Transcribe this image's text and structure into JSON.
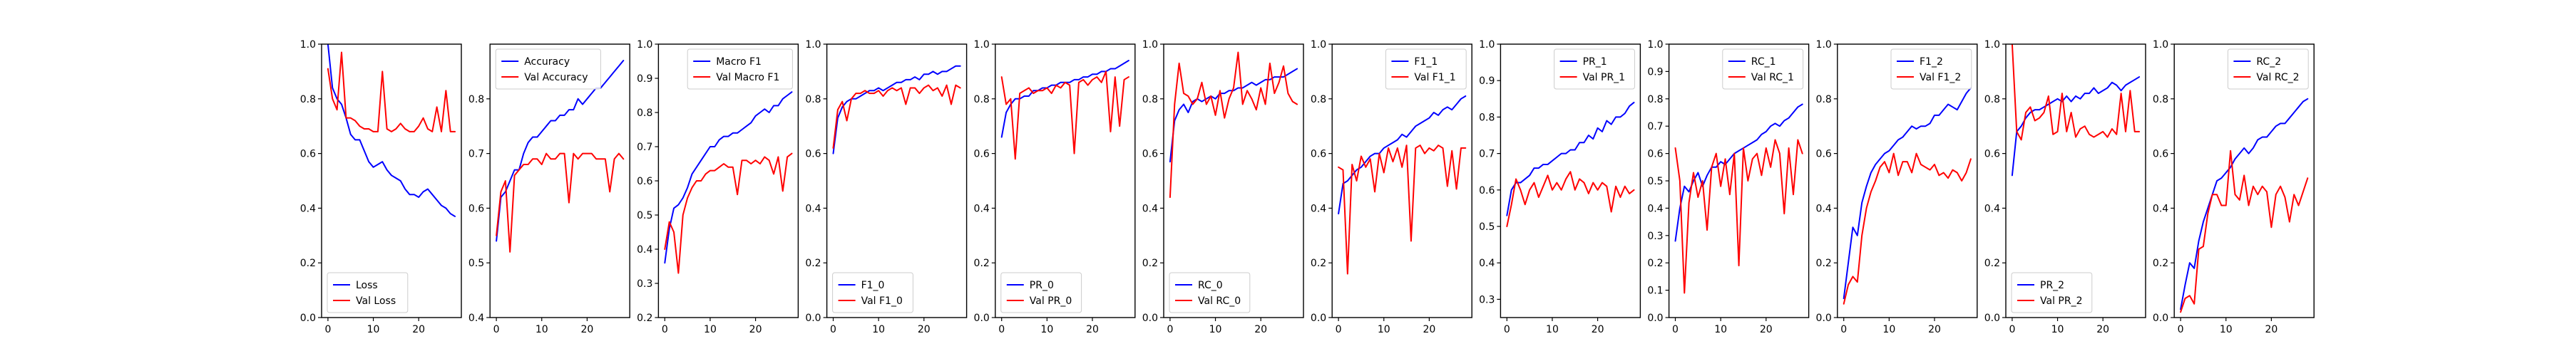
{
  "chart_data": [
    {
      "type": "line",
      "legend_loc": "bottom-left",
      "ylim": [
        0,
        1
      ],
      "xlim": [
        -1.4,
        29.4
      ],
      "xticks": [
        0,
        10,
        20
      ],
      "yticks": [
        0.0,
        0.2,
        0.4,
        0.6,
        0.8,
        1.0
      ],
      "series": [
        {
          "name": "Loss",
          "color": "#0000ff",
          "values": [
            1.0,
            0.84,
            0.8,
            0.78,
            0.73,
            0.67,
            0.65,
            0.65,
            0.61,
            0.57,
            0.55,
            0.56,
            0.57,
            0.54,
            0.52,
            0.51,
            0.5,
            0.47,
            0.45,
            0.45,
            0.44,
            0.46,
            0.47,
            0.45,
            0.43,
            0.41,
            0.4,
            0.38,
            0.37
          ]
        },
        {
          "name": "Val Loss",
          "color": "#ff0000",
          "values": [
            0.91,
            0.8,
            0.76,
            0.97,
            0.73,
            0.73,
            0.72,
            0.7,
            0.69,
            0.69,
            0.68,
            0.68,
            0.9,
            0.69,
            0.68,
            0.69,
            0.71,
            0.69,
            0.68,
            0.68,
            0.7,
            0.73,
            0.69,
            0.68,
            0.77,
            0.68,
            0.83,
            0.68,
            0.68
          ]
        }
      ]
    },
    {
      "type": "line",
      "legend_loc": "top-left",
      "ylim": [
        0.4,
        0.9
      ],
      "xlim": [
        -1.4,
        29.4
      ],
      "xticks": [
        0,
        10,
        20
      ],
      "yticks": [
        0.4,
        0.5,
        0.6,
        0.7,
        0.8
      ],
      "series": [
        {
          "name": "Accuracy",
          "color": "#0000ff",
          "values": [
            0.54,
            0.62,
            0.63,
            0.65,
            0.67,
            0.67,
            0.7,
            0.72,
            0.73,
            0.73,
            0.74,
            0.75,
            0.76,
            0.76,
            0.77,
            0.77,
            0.78,
            0.78,
            0.8,
            0.79,
            0.8,
            0.81,
            0.82,
            0.82,
            0.83,
            0.84,
            0.85,
            0.86,
            0.87
          ]
        },
        {
          "name": "Val Accuracy",
          "color": "#ff0000",
          "values": [
            0.55,
            0.63,
            0.65,
            0.52,
            0.66,
            0.67,
            0.68,
            0.68,
            0.69,
            0.69,
            0.68,
            0.7,
            0.69,
            0.69,
            0.7,
            0.7,
            0.61,
            0.7,
            0.69,
            0.7,
            0.7,
            0.7,
            0.69,
            0.69,
            0.69,
            0.63,
            0.69,
            0.7,
            0.69
          ]
        }
      ]
    },
    {
      "type": "line",
      "legend_loc": "top-right",
      "ylim": [
        0.2,
        1.0
      ],
      "xlim": [
        -1.4,
        29.4
      ],
      "xticks": [
        0,
        10,
        20
      ],
      "yticks": [
        0.2,
        0.3,
        0.4,
        0.5,
        0.6,
        0.7,
        0.8,
        0.9,
        1.0
      ],
      "series": [
        {
          "name": "Macro F1",
          "color": "#0000ff",
          "values": [
            0.36,
            0.46,
            0.52,
            0.53,
            0.55,
            0.58,
            0.62,
            0.64,
            0.66,
            0.68,
            0.7,
            0.7,
            0.72,
            0.73,
            0.73,
            0.74,
            0.74,
            0.75,
            0.76,
            0.77,
            0.79,
            0.8,
            0.81,
            0.8,
            0.82,
            0.82,
            0.84,
            0.85,
            0.86
          ]
        },
        {
          "name": "Val Macro F1",
          "color": "#ff0000",
          "values": [
            0.4,
            0.48,
            0.45,
            0.33,
            0.5,
            0.55,
            0.58,
            0.6,
            0.6,
            0.62,
            0.63,
            0.63,
            0.64,
            0.65,
            0.64,
            0.64,
            0.56,
            0.66,
            0.66,
            0.65,
            0.66,
            0.65,
            0.67,
            0.66,
            0.62,
            0.67,
            0.57,
            0.67,
            0.68
          ]
        }
      ]
    },
    {
      "type": "line",
      "legend_loc": "bottom-left",
      "ylim": [
        0,
        1
      ],
      "xlim": [
        -1.4,
        29.4
      ],
      "xticks": [
        0,
        10,
        20
      ],
      "yticks": [
        0.0,
        0.2,
        0.4,
        0.6,
        0.8,
        1.0
      ],
      "series": [
        {
          "name": "F1_0",
          "color": "#0000ff",
          "values": [
            0.6,
            0.73,
            0.77,
            0.79,
            0.8,
            0.8,
            0.81,
            0.82,
            0.83,
            0.83,
            0.84,
            0.83,
            0.84,
            0.85,
            0.86,
            0.86,
            0.87,
            0.87,
            0.88,
            0.87,
            0.89,
            0.89,
            0.9,
            0.89,
            0.9,
            0.9,
            0.91,
            0.92,
            0.92
          ]
        },
        {
          "name": "Val F1_0",
          "color": "#ff0000",
          "values": [
            0.62,
            0.76,
            0.79,
            0.72,
            0.8,
            0.82,
            0.82,
            0.83,
            0.82,
            0.82,
            0.83,
            0.81,
            0.83,
            0.84,
            0.83,
            0.84,
            0.78,
            0.84,
            0.84,
            0.82,
            0.84,
            0.85,
            0.83,
            0.84,
            0.81,
            0.85,
            0.78,
            0.85,
            0.84
          ]
        }
      ]
    },
    {
      "type": "line",
      "legend_loc": "bottom-left",
      "ylim": [
        0,
        1
      ],
      "xlim": [
        -1.4,
        29.4
      ],
      "xticks": [
        0,
        10,
        20
      ],
      "yticks": [
        0.0,
        0.2,
        0.4,
        0.6,
        0.8,
        1.0
      ],
      "series": [
        {
          "name": "PR_0",
          "color": "#0000ff",
          "values": [
            0.66,
            0.75,
            0.78,
            0.8,
            0.8,
            0.81,
            0.81,
            0.83,
            0.83,
            0.84,
            0.84,
            0.85,
            0.85,
            0.86,
            0.86,
            0.86,
            0.87,
            0.87,
            0.88,
            0.88,
            0.89,
            0.89,
            0.9,
            0.9,
            0.91,
            0.91,
            0.92,
            0.93,
            0.94
          ]
        },
        {
          "name": "Val PR_0",
          "color": "#ff0000",
          "values": [
            0.88,
            0.78,
            0.8,
            0.58,
            0.82,
            0.83,
            0.84,
            0.82,
            0.83,
            0.83,
            0.84,
            0.82,
            0.85,
            0.84,
            0.86,
            0.85,
            0.6,
            0.86,
            0.87,
            0.85,
            0.87,
            0.88,
            0.86,
            0.9,
            0.68,
            0.88,
            0.7,
            0.87,
            0.88
          ]
        }
      ]
    },
    {
      "type": "line",
      "legend_loc": "bottom-left",
      "ylim": [
        0,
        1
      ],
      "xlim": [
        -1.4,
        29.4
      ],
      "xticks": [
        0,
        10,
        20
      ],
      "yticks": [
        0.0,
        0.2,
        0.4,
        0.6,
        0.8,
        1.0
      ],
      "series": [
        {
          "name": "RC_0",
          "color": "#0000ff",
          "values": [
            0.57,
            0.72,
            0.76,
            0.78,
            0.75,
            0.79,
            0.8,
            0.79,
            0.8,
            0.81,
            0.8,
            0.82,
            0.82,
            0.83,
            0.83,
            0.84,
            0.84,
            0.85,
            0.86,
            0.85,
            0.86,
            0.87,
            0.87,
            0.88,
            0.88,
            0.88,
            0.89,
            0.9,
            0.91
          ]
        },
        {
          "name": "Val RC_0",
          "color": "#ff0000",
          "values": [
            0.44,
            0.78,
            0.93,
            0.82,
            0.81,
            0.78,
            0.8,
            0.86,
            0.78,
            0.81,
            0.74,
            0.83,
            0.73,
            0.8,
            0.84,
            0.97,
            0.78,
            0.83,
            0.8,
            0.76,
            0.84,
            0.78,
            0.93,
            0.82,
            0.86,
            0.92,
            0.82,
            0.79,
            0.78
          ]
        }
      ]
    },
    {
      "type": "line",
      "legend_loc": "top-right",
      "ylim": [
        0,
        1
      ],
      "xlim": [
        -1.4,
        29.4
      ],
      "xticks": [
        0,
        10,
        20
      ],
      "yticks": [
        0.0,
        0.2,
        0.4,
        0.6,
        0.8,
        1.0
      ],
      "series": [
        {
          "name": "F1_1",
          "color": "#0000ff",
          "values": [
            0.38,
            0.49,
            0.5,
            0.52,
            0.54,
            0.55,
            0.57,
            0.59,
            0.6,
            0.6,
            0.62,
            0.63,
            0.64,
            0.65,
            0.67,
            0.66,
            0.68,
            0.7,
            0.71,
            0.72,
            0.73,
            0.75,
            0.74,
            0.76,
            0.77,
            0.76,
            0.78,
            0.8,
            0.81
          ]
        },
        {
          "name": "Val F1_1",
          "color": "#ff0000",
          "values": [
            0.55,
            0.54,
            0.16,
            0.56,
            0.5,
            0.59,
            0.55,
            0.58,
            0.46,
            0.6,
            0.53,
            0.62,
            0.57,
            0.62,
            0.55,
            0.63,
            0.28,
            0.62,
            0.63,
            0.6,
            0.62,
            0.61,
            0.63,
            0.62,
            0.48,
            0.61,
            0.47,
            0.62,
            0.62
          ]
        }
      ]
    },
    {
      "type": "line",
      "legend_loc": "top-right",
      "ylim": [
        0.25,
        1.0
      ],
      "xlim": [
        -1.4,
        29.4
      ],
      "xticks": [
        0,
        10,
        20
      ],
      "yticks": [
        0.3,
        0.4,
        0.5,
        0.6,
        0.7,
        0.8,
        0.9,
        1.0
      ],
      "series": [
        {
          "name": "PR_1",
          "color": "#0000ff",
          "values": [
            0.53,
            0.6,
            0.62,
            0.62,
            0.63,
            0.64,
            0.66,
            0.66,
            0.67,
            0.67,
            0.68,
            0.69,
            0.7,
            0.7,
            0.71,
            0.71,
            0.73,
            0.73,
            0.75,
            0.74,
            0.77,
            0.76,
            0.79,
            0.78,
            0.8,
            0.8,
            0.81,
            0.83,
            0.84
          ]
        },
        {
          "name": "Val PR_1",
          "color": "#ff0000",
          "values": [
            0.5,
            0.56,
            0.63,
            0.6,
            0.56,
            0.6,
            0.62,
            0.58,
            0.61,
            0.64,
            0.6,
            0.62,
            0.6,
            0.63,
            0.65,
            0.6,
            0.63,
            0.62,
            0.59,
            0.62,
            0.6,
            0.62,
            0.61,
            0.54,
            0.61,
            0.58,
            0.61,
            0.59,
            0.6
          ]
        }
      ]
    },
    {
      "type": "line",
      "legend_loc": "top-right",
      "ylim": [
        0.0,
        1.0
      ],
      "xlim": [
        -1.4,
        29.4
      ],
      "xticks": [
        0,
        10,
        20
      ],
      "yticks": [
        0.0,
        0.1,
        0.2,
        0.3,
        0.4,
        0.5,
        0.6,
        0.7,
        0.8,
        0.9,
        1.0
      ],
      "series": [
        {
          "name": "RC_1",
          "color": "#0000ff",
          "values": [
            0.28,
            0.4,
            0.48,
            0.46,
            0.5,
            0.53,
            0.48,
            0.52,
            0.55,
            0.55,
            0.57,
            0.56,
            0.58,
            0.6,
            0.61,
            0.62,
            0.63,
            0.64,
            0.65,
            0.67,
            0.68,
            0.7,
            0.71,
            0.7,
            0.72,
            0.73,
            0.75,
            0.77,
            0.78
          ]
        },
        {
          "name": "Val RC_1",
          "color": "#ff0000",
          "values": [
            0.62,
            0.5,
            0.09,
            0.42,
            0.53,
            0.44,
            0.5,
            0.32,
            0.55,
            0.6,
            0.48,
            0.58,
            0.45,
            0.6,
            0.19,
            0.62,
            0.5,
            0.58,
            0.6,
            0.52,
            0.62,
            0.55,
            0.65,
            0.6,
            0.38,
            0.62,
            0.45,
            0.65,
            0.6
          ]
        }
      ]
    },
    {
      "type": "line",
      "legend_loc": "top-right",
      "ylim": [
        0.0,
        1.0
      ],
      "xlim": [
        -1.4,
        29.4
      ],
      "xticks": [
        0,
        10,
        20
      ],
      "yticks": [
        0.0,
        0.2,
        0.4,
        0.6,
        0.8,
        1.0
      ],
      "series": [
        {
          "name": "F1_2",
          "color": "#0000ff",
          "values": [
            0.07,
            0.2,
            0.33,
            0.3,
            0.42,
            0.48,
            0.53,
            0.56,
            0.58,
            0.6,
            0.61,
            0.63,
            0.65,
            0.66,
            0.68,
            0.7,
            0.69,
            0.7,
            0.7,
            0.71,
            0.74,
            0.74,
            0.76,
            0.78,
            0.77,
            0.76,
            0.79,
            0.82,
            0.84
          ]
        },
        {
          "name": "Val F1_2",
          "color": "#ff0000",
          "values": [
            0.05,
            0.12,
            0.15,
            0.13,
            0.3,
            0.4,
            0.46,
            0.5,
            0.55,
            0.57,
            0.53,
            0.6,
            0.52,
            0.57,
            0.57,
            0.53,
            0.6,
            0.56,
            0.55,
            0.54,
            0.56,
            0.52,
            0.53,
            0.51,
            0.54,
            0.53,
            0.5,
            0.53,
            0.58
          ]
        }
      ]
    },
    {
      "type": "line",
      "legend_loc": "bottom-left",
      "ylim": [
        0,
        1
      ],
      "xlim": [
        -1.4,
        29.4
      ],
      "xticks": [
        0,
        10,
        20
      ],
      "yticks": [
        0.0,
        0.2,
        0.4,
        0.6,
        0.8,
        1.0
      ],
      "series": [
        {
          "name": "PR_2",
          "color": "#0000ff",
          "values": [
            0.52,
            0.68,
            0.7,
            0.73,
            0.75,
            0.76,
            0.76,
            0.77,
            0.78,
            0.79,
            0.8,
            0.79,
            0.81,
            0.79,
            0.81,
            0.8,
            0.82,
            0.82,
            0.84,
            0.82,
            0.83,
            0.84,
            0.86,
            0.85,
            0.83,
            0.85,
            0.86,
            0.87,
            0.88
          ]
        },
        {
          "name": "Val PR_2",
          "color": "#ff0000",
          "values": [
            1.0,
            0.68,
            0.65,
            0.75,
            0.77,
            0.72,
            0.73,
            0.75,
            0.81,
            0.67,
            0.68,
            0.82,
            0.68,
            0.75,
            0.66,
            0.69,
            0.7,
            0.67,
            0.66,
            0.67,
            0.68,
            0.66,
            0.69,
            0.67,
            0.82,
            0.68,
            0.83,
            0.68,
            0.68
          ]
        }
      ]
    },
    {
      "type": "line",
      "legend_loc": "top-right",
      "ylim": [
        0.0,
        1.0
      ],
      "xlim": [
        -1.4,
        29.4
      ],
      "xticks": [
        0,
        10,
        20
      ],
      "yticks": [
        0.0,
        0.2,
        0.4,
        0.6,
        0.8,
        1.0
      ],
      "series": [
        {
          "name": "RC_2",
          "color": "#0000ff",
          "values": [
            0.03,
            0.12,
            0.2,
            0.18,
            0.28,
            0.35,
            0.4,
            0.45,
            0.5,
            0.51,
            0.53,
            0.55,
            0.58,
            0.6,
            0.62,
            0.6,
            0.62,
            0.65,
            0.66,
            0.66,
            0.68,
            0.7,
            0.71,
            0.71,
            0.73,
            0.75,
            0.77,
            0.79,
            0.8
          ]
        },
        {
          "name": "Val RC_2",
          "color": "#ff0000",
          "values": [
            0.02,
            0.07,
            0.08,
            0.05,
            0.25,
            0.26,
            0.38,
            0.45,
            0.45,
            0.41,
            0.41,
            0.61,
            0.45,
            0.43,
            0.52,
            0.41,
            0.48,
            0.45,
            0.48,
            0.46,
            0.33,
            0.45,
            0.48,
            0.44,
            0.35,
            0.45,
            0.41,
            0.46,
            0.51
          ]
        }
      ]
    }
  ]
}
